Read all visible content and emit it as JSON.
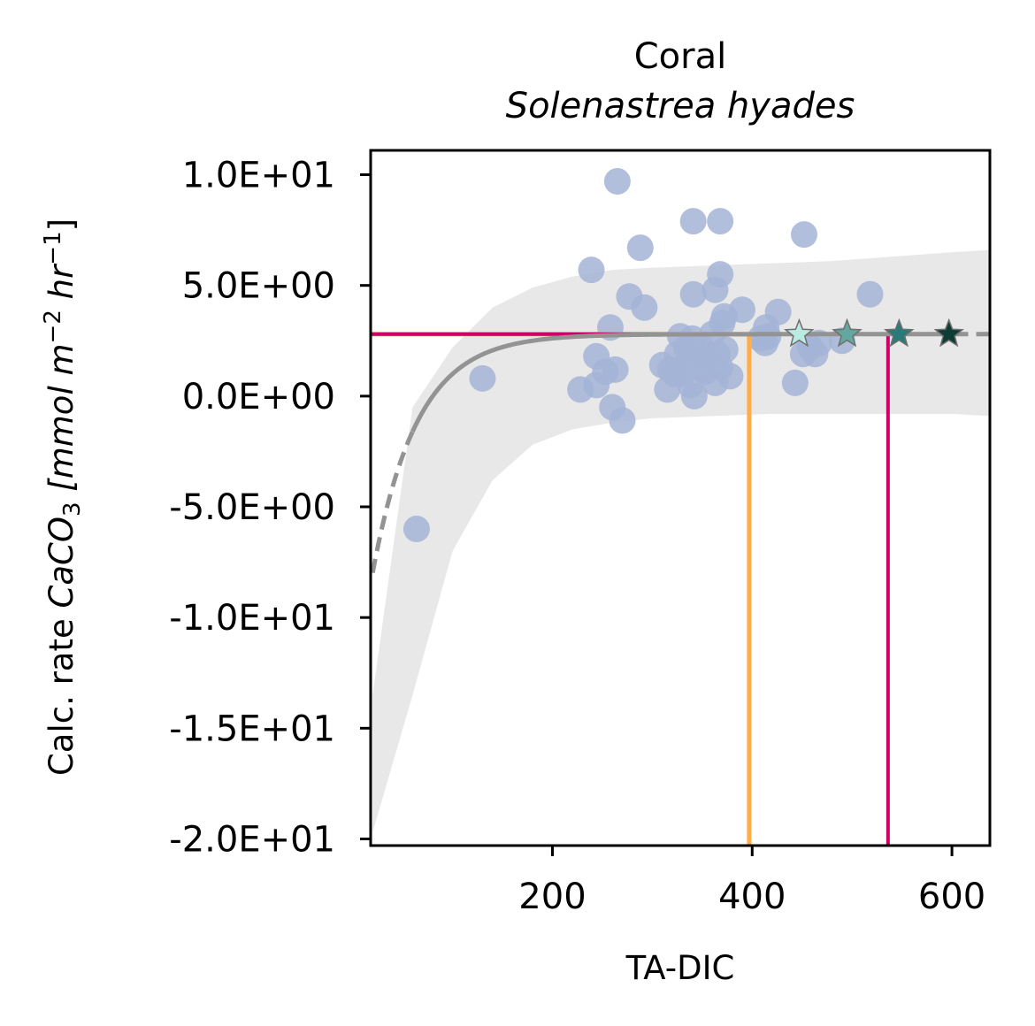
{
  "chart_data": {
    "type": "scatter",
    "title": "Coral",
    "subtitle": "Solenastrea hyades",
    "xlabel": "TA-DIC",
    "ylabel_prefix": "Calc. rate",
    "ylabel_species": "CaCO",
    "ylabel_sub": "3",
    "ylabel_unit_open": "[mmol m",
    "ylabel_exp1": "−2",
    "ylabel_unit_mid": "hr",
    "ylabel_exp2": "−1",
    "ylabel_unit_close": "]",
    "xlim": [
      18,
      638
    ],
    "ylim": [
      -20.3,
      11.1
    ],
    "xticks": [
      200,
      400,
      600
    ],
    "xtick_labels": [
      "200",
      "400",
      "600"
    ],
    "yticks": [
      10,
      5,
      0,
      -5,
      -10,
      -15,
      -20
    ],
    "ytick_labels": [
      "1.0E+01",
      "5.0E+00",
      "0.0E+00",
      "-5.0E+00",
      "-1.0E+01",
      "-1.5E+01",
      "-2.0E+01"
    ],
    "grid": false,
    "colors": {
      "points": "#a3b4d6",
      "fit": "#939393",
      "band": "#e8e8e8",
      "orange_line": "#ffad4a",
      "magenta_line": "#cc0066",
      "stars": [
        "#b9ebe3",
        "#62a89e",
        "#2a7a78",
        "#0f3c35"
      ]
    },
    "fit": {
      "model": "asymptotic",
      "asymptote": 2.8,
      "amplitude": -4.4,
      "rate": 0.0224,
      "offset": 60,
      "solid_x_range": [
        60,
        580
      ]
    },
    "band": {
      "x": [
        20,
        60,
        100,
        140,
        180,
        220,
        260,
        300,
        360,
        420,
        480,
        540,
        600,
        638
      ],
      "upper": [
        -13.5,
        -0.5,
        2.2,
        4.0,
        4.9,
        5.4,
        5.7,
        5.8,
        5.9,
        6.0,
        6.1,
        6.3,
        6.5,
        6.6
      ],
      "lower": [
        -19.7,
        -13.5,
        -7.0,
        -3.8,
        -2.2,
        -1.5,
        -1.2,
        -1.0,
        -0.9,
        -0.8,
        -0.8,
        -0.8,
        -0.8,
        -0.9
      ]
    },
    "reference_lines": [
      {
        "name": "orange",
        "x": 397,
        "y": 2.8
      },
      {
        "name": "magenta",
        "x": 536,
        "y": 2.8
      }
    ],
    "stars": [
      {
        "x": 447,
        "y": 2.8
      },
      {
        "x": 495,
        "y": 2.8
      },
      {
        "x": 547,
        "y": 2.8
      },
      {
        "x": 597,
        "y": 2.8
      }
    ],
    "points": [
      {
        "x": 64,
        "y": -6.0
      },
      {
        "x": 130,
        "y": 0.8
      },
      {
        "x": 239,
        "y": 5.7
      },
      {
        "x": 265,
        "y": 9.7
      },
      {
        "x": 288,
        "y": 6.7
      },
      {
        "x": 341,
        "y": 7.9
      },
      {
        "x": 368,
        "y": 7.9
      },
      {
        "x": 452,
        "y": 7.3
      },
      {
        "x": 518,
        "y": 4.6
      },
      {
        "x": 277,
        "y": 4.5
      },
      {
        "x": 292,
        "y": 4.0
      },
      {
        "x": 258,
        "y": 3.1
      },
      {
        "x": 341,
        "y": 4.6
      },
      {
        "x": 363,
        "y": 4.8
      },
      {
        "x": 368,
        "y": 5.5
      },
      {
        "x": 372,
        "y": 3.6
      },
      {
        "x": 390,
        "y": 3.9
      },
      {
        "x": 414,
        "y": 3.1
      },
      {
        "x": 426,
        "y": 3.8
      },
      {
        "x": 228,
        "y": 0.3
      },
      {
        "x": 244,
        "y": 0.5
      },
      {
        "x": 244,
        "y": 1.8
      },
      {
        "x": 253,
        "y": 1.1
      },
      {
        "x": 263,
        "y": 1.2
      },
      {
        "x": 260,
        "y": -0.5
      },
      {
        "x": 270,
        "y": -1.1
      },
      {
        "x": 310,
        "y": 1.4
      },
      {
        "x": 315,
        "y": 0.3
      },
      {
        "x": 318,
        "y": 1.2
      },
      {
        "x": 325,
        "y": 1.9
      },
      {
        "x": 328,
        "y": 2.7
      },
      {
        "x": 330,
        "y": 1.0
      },
      {
        "x": 334,
        "y": 2.2
      },
      {
        "x": 336,
        "y": 1.6
      },
      {
        "x": 338,
        "y": 0.5
      },
      {
        "x": 340,
        "y": 2.6
      },
      {
        "x": 342,
        "y": 0.0
      },
      {
        "x": 345,
        "y": 1.8
      },
      {
        "x": 348,
        "y": 2.3
      },
      {
        "x": 352,
        "y": 1.2
      },
      {
        "x": 356,
        "y": 1.6
      },
      {
        "x": 360,
        "y": 2.8
      },
      {
        "x": 363,
        "y": 0.6
      },
      {
        "x": 365,
        "y": 1.9
      },
      {
        "x": 368,
        "y": 1.3
      },
      {
        "x": 370,
        "y": 3.3
      },
      {
        "x": 373,
        "y": 2.1
      },
      {
        "x": 378,
        "y": 0.9
      },
      {
        "x": 408,
        "y": 2.6
      },
      {
        "x": 413,
        "y": 2.4
      },
      {
        "x": 416,
        "y": 2.7
      },
      {
        "x": 443,
        "y": 0.6
      },
      {
        "x": 451,
        "y": 1.9
      },
      {
        "x": 458,
        "y": 2.2
      },
      {
        "x": 463,
        "y": 1.9
      },
      {
        "x": 467,
        "y": 2.4
      },
      {
        "x": 490,
        "y": 2.5
      },
      {
        "x": 353,
        "y": 1.1
      },
      {
        "x": 322,
        "y": 1.0
      }
    ]
  }
}
